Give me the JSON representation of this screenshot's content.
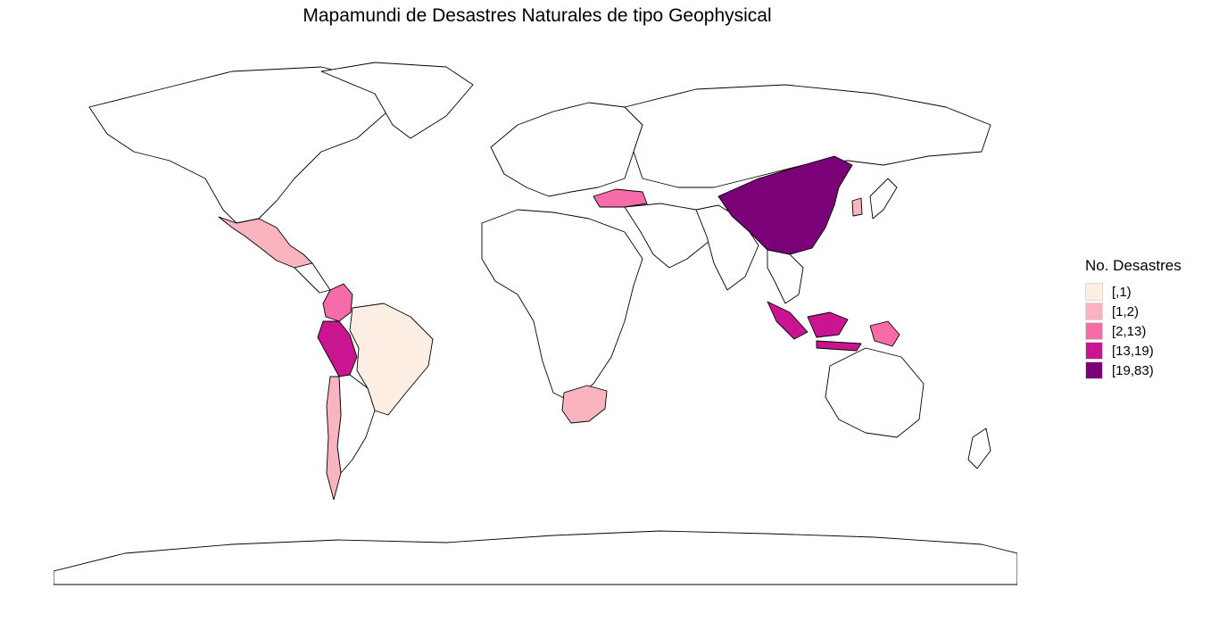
{
  "map": {
    "title": "Mapamundi de Desastres Naturales de tipo Geophysical",
    "legend": {
      "title": "No. Desastres",
      "bins": [
        {
          "label": "[,1)",
          "color": "#fdeee4"
        },
        {
          "label": "[1,2)",
          "color": "#f9b4c0"
        },
        {
          "label": "[2,13)",
          "color": "#f56ca8"
        },
        {
          "label": "[13,19)",
          "color": "#c9158f"
        },
        {
          "label": "[19,83)",
          "color": "#7a0177"
        }
      ]
    },
    "default_fill": "#ffffff",
    "highlighted": [
      {
        "name": "Brazil",
        "bin": 0
      },
      {
        "name": "Mexico",
        "bin": 1
      },
      {
        "name": "Chile",
        "bin": 1
      },
      {
        "name": "South Africa",
        "bin": 1
      },
      {
        "name": "South Korea",
        "bin": 1
      },
      {
        "name": "Colombia",
        "bin": 2
      },
      {
        "name": "Turkey",
        "bin": 2
      },
      {
        "name": "Papua New Guinea",
        "bin": 2
      },
      {
        "name": "Peru",
        "bin": 3
      },
      {
        "name": "Indonesia",
        "bin": 3
      },
      {
        "name": "China",
        "bin": 4
      }
    ]
  }
}
